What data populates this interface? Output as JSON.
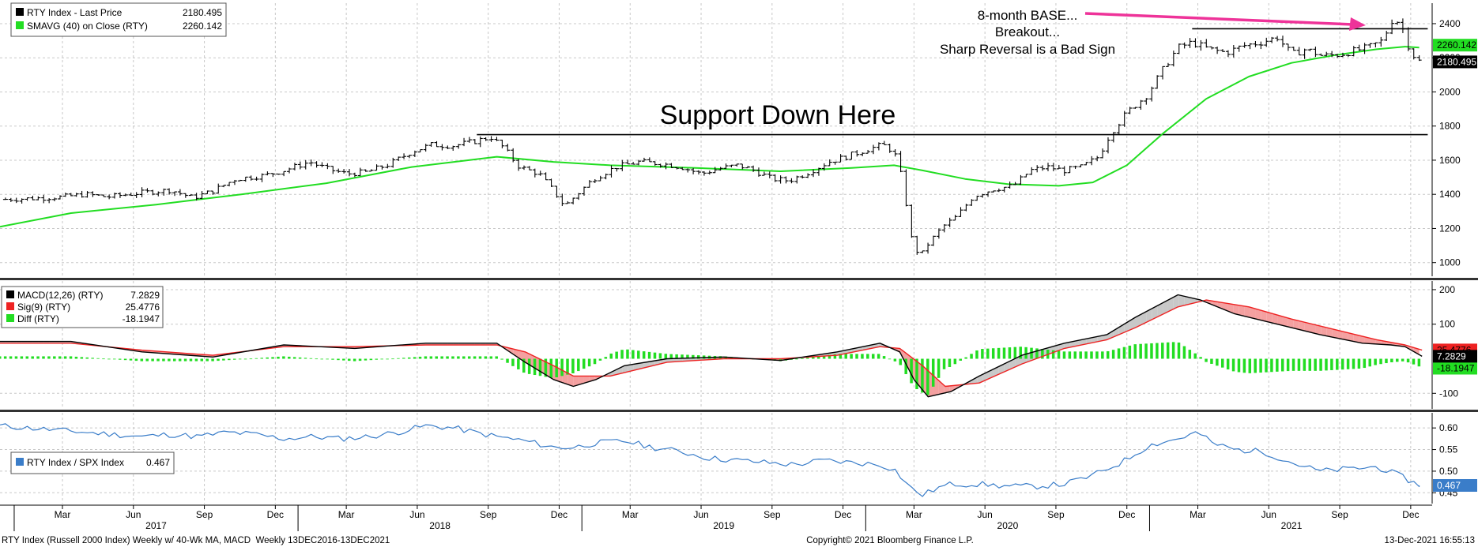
{
  "colors": {
    "price": "#000000",
    "sma": "#22dd22",
    "macd": "#000000",
    "signal": "#ee2222",
    "diff": "#22dd22",
    "ratio": "#3a7dc9",
    "arrow": "#ee3399",
    "grid": "#c8c8c8"
  },
  "legends": {
    "price": [
      {
        "label": "RTY Index - Last Price",
        "value": "2180.495"
      },
      {
        "label": "SMAVG (40) on Close (RTY)",
        "value": "2260.142"
      }
    ],
    "macd": [
      {
        "label": "MACD(12,26) (RTY)",
        "value": "7.2829"
      },
      {
        "label": "Sig(9) (RTY)",
        "value": "25.4776"
      },
      {
        "label": "Diff (RTY)",
        "value": "-18.1947"
      }
    ],
    "ratio": [
      {
        "label": "RTY Index / SPX Index",
        "value": "0.467"
      }
    ]
  },
  "annotations": {
    "base": "8-month BASE...",
    "breakout": "Breakout...",
    "reversal": "Sharp Reversal is a Bad Sign",
    "support": "Support Down Here"
  },
  "footer": {
    "left": "RTY Index (Russell 2000 Index) Weekly w/ 40-Wk MA, MACD  Weekly 13DEC2016-13DEC2021",
    "center": "Copyright© 2021 Bloomberg Finance L.P.",
    "right": "13-Dec-2021 16:55:13"
  },
  "x_axis": {
    "months": [
      {
        "label": "Mar",
        "t": 2017.17
      },
      {
        "label": "Jun",
        "t": 2017.42
      },
      {
        "label": "Sep",
        "t": 2017.67
      },
      {
        "label": "Dec",
        "t": 2017.92
      },
      {
        "label": "Mar",
        "t": 2018.17
      },
      {
        "label": "Jun",
        "t": 2018.42
      },
      {
        "label": "Sep",
        "t": 2018.67
      },
      {
        "label": "Dec",
        "t": 2018.92
      },
      {
        "label": "Mar",
        "t": 2019.17
      },
      {
        "label": "Jun",
        "t": 2019.42
      },
      {
        "label": "Sep",
        "t": 2019.67
      },
      {
        "label": "Dec",
        "t": 2019.92
      },
      {
        "label": "Mar",
        "t": 2020.17
      },
      {
        "label": "Jun",
        "t": 2020.42
      },
      {
        "label": "Sep",
        "t": 2020.67
      },
      {
        "label": "Dec",
        "t": 2020.92
      },
      {
        "label": "Mar",
        "t": 2021.17
      },
      {
        "label": "Jun",
        "t": 2021.42
      },
      {
        "label": "Sep",
        "t": 2021.67
      },
      {
        "label": "Dec",
        "t": 2021.92
      }
    ],
    "years": [
      {
        "label": "2017",
        "t": 2017.5
      },
      {
        "label": "2018",
        "t": 2018.5
      },
      {
        "label": "2019",
        "t": 2019.5
      },
      {
        "label": "2020",
        "t": 2020.5
      },
      {
        "label": "2021",
        "t": 2021.5
      }
    ],
    "year_boundaries": [
      2017.0,
      2018.0,
      2019.0,
      2020.0,
      2021.0
    ]
  },
  "chart_data": [
    {
      "type": "line",
      "panel": "price",
      "yticks": [
        1000,
        1200,
        1400,
        1600,
        1800,
        2000,
        2200,
        2400
      ],
      "ylim": [
        920,
        2520
      ],
      "xlim": [
        2016.95,
        2021.99
      ],
      "grid": true,
      "price_points": [
        [
          2016.95,
          1370
        ],
        [
          2017.05,
          1375
        ],
        [
          2017.17,
          1385
        ],
        [
          2017.25,
          1400
        ],
        [
          2017.33,
          1385
        ],
        [
          2017.45,
          1410
        ],
        [
          2017.55,
          1425
        ],
        [
          2017.63,
          1380
        ],
        [
          2017.7,
          1420
        ],
        [
          2017.78,
          1490
        ],
        [
          2017.88,
          1510
        ],
        [
          2017.95,
          1540
        ],
        [
          2018.04,
          1590
        ],
        [
          2018.1,
          1550
        ],
        [
          2018.17,
          1520
        ],
        [
          2018.24,
          1530
        ],
        [
          2018.32,
          1575
        ],
        [
          2018.4,
          1650
        ],
        [
          2018.47,
          1690
        ],
        [
          2018.55,
          1685
        ],
        [
          2018.62,
          1710
        ],
        [
          2018.68,
          1735
        ],
        [
          2018.72,
          1680
        ],
        [
          2018.78,
          1560
        ],
        [
          2018.85,
          1520
        ],
        [
          2018.9,
          1420
        ],
        [
          2018.94,
          1330
        ],
        [
          2018.97,
          1380
        ],
        [
          2019.04,
          1490
        ],
        [
          2019.12,
          1560
        ],
        [
          2019.2,
          1590
        ],
        [
          2019.28,
          1580
        ],
        [
          2019.35,
          1560
        ],
        [
          2019.42,
          1520
        ],
        [
          2019.48,
          1550
        ],
        [
          2019.55,
          1570
        ],
        [
          2019.6,
          1545
        ],
        [
          2019.67,
          1490
        ],
        [
          2019.73,
          1480
        ],
        [
          2019.8,
          1530
        ],
        [
          2019.87,
          1590
        ],
        [
          2019.93,
          1620
        ],
        [
          2020.0,
          1660
        ],
        [
          2020.06,
          1690
        ],
        [
          2020.1,
          1650
        ],
        [
          2020.13,
          1480
        ],
        [
          2020.16,
          1150
        ],
        [
          2020.19,
          1030
        ],
        [
          2020.22,
          1110
        ],
        [
          2020.27,
          1210
        ],
        [
          2020.32,
          1270
        ],
        [
          2020.38,
          1390
        ],
        [
          2020.45,
          1430
        ],
        [
          2020.52,
          1450
        ],
        [
          2020.58,
          1540
        ],
        [
          2020.64,
          1560
        ],
        [
          2020.7,
          1540
        ],
        [
          2020.76,
          1560
        ],
        [
          2020.82,
          1620
        ],
        [
          2020.86,
          1750
        ],
        [
          2020.92,
          1880
        ],
        [
          2020.99,
          1980
        ],
        [
          2021.05,
          2140
        ],
        [
          2021.1,
          2260
        ],
        [
          2021.15,
          2290
        ],
        [
          2021.21,
          2250
        ],
        [
          2021.27,
          2230
        ],
        [
          2021.33,
          2270
        ],
        [
          2021.39,
          2290
        ],
        [
          2021.45,
          2320
        ],
        [
          2021.5,
          2220
        ],
        [
          2021.55,
          2250
        ],
        [
          2021.61,
          2210
        ],
        [
          2021.67,
          2220
        ],
        [
          2021.72,
          2240
        ],
        [
          2021.77,
          2260
        ],
        [
          2021.82,
          2300
        ],
        [
          2021.86,
          2440
        ],
        [
          2021.89,
          2380
        ],
        [
          2021.92,
          2230
        ],
        [
          2021.95,
          2180
        ]
      ],
      "sma_points": [
        [
          2016.95,
          1210
        ],
        [
          2017.2,
          1290
        ],
        [
          2017.5,
          1340
        ],
        [
          2017.8,
          1400
        ],
        [
          2018.1,
          1465
        ],
        [
          2018.4,
          1560
        ],
        [
          2018.7,
          1620
        ],
        [
          2018.9,
          1590
        ],
        [
          2019.1,
          1570
        ],
        [
          2019.4,
          1555
        ],
        [
          2019.7,
          1535
        ],
        [
          2019.95,
          1555
        ],
        [
          2020.1,
          1570
        ],
        [
          2020.2,
          1540
        ],
        [
          2020.35,
          1490
        ],
        [
          2020.5,
          1460
        ],
        [
          2020.68,
          1450
        ],
        [
          2020.8,
          1470
        ],
        [
          2020.92,
          1570
        ],
        [
          2021.05,
          1760
        ],
        [
          2021.2,
          1960
        ],
        [
          2021.35,
          2090
        ],
        [
          2021.5,
          2170
        ],
        [
          2021.65,
          2215
        ],
        [
          2021.8,
          2250
        ],
        [
          2021.9,
          2265
        ],
        [
          2021.95,
          2260
        ]
      ],
      "levels": [
        {
          "value": 1750,
          "t_start": 2018.63,
          "t_end": 2021.98
        },
        {
          "value": 2370,
          "t_start": 2021.15,
          "t_end": 2021.98
        }
      ],
      "value_tags": [
        {
          "text": "2260.142",
          "value": 2260.142
        },
        {
          "text": "2180.495",
          "value": 2180.495
        }
      ]
    },
    {
      "type": "line",
      "panel": "macd",
      "yticks": [
        -100,
        100,
        200
      ],
      "ylim": [
        -145,
        225
      ],
      "grid": true,
      "macd_points": [
        [
          2016.95,
          50
        ],
        [
          2017.2,
          50
        ],
        [
          2017.45,
          20
        ],
        [
          2017.7,
          5
        ],
        [
          2017.95,
          40
        ],
        [
          2018.2,
          30
        ],
        [
          2018.45,
          45
        ],
        [
          2018.7,
          45
        ],
        [
          2018.8,
          -10
        ],
        [
          2018.9,
          -60
        ],
        [
          2018.97,
          -80
        ],
        [
          2019.05,
          -60
        ],
        [
          2019.15,
          -20
        ],
        [
          2019.3,
          0
        ],
        [
          2019.5,
          5
        ],
        [
          2019.7,
          -5
        ],
        [
          2019.9,
          20
        ],
        [
          2020.05,
          45
        ],
        [
          2020.12,
          20
        ],
        [
          2020.17,
          -60
        ],
        [
          2020.22,
          -110
        ],
        [
          2020.3,
          -95
        ],
        [
          2020.4,
          -50
        ],
        [
          2020.55,
          10
        ],
        [
          2020.7,
          45
        ],
        [
          2020.85,
          70
        ],
        [
          2020.95,
          120
        ],
        [
          2021.1,
          185
        ],
        [
          2021.18,
          170
        ],
        [
          2021.3,
          130
        ],
        [
          2021.45,
          100
        ],
        [
          2021.6,
          70
        ],
        [
          2021.75,
          45
        ],
        [
          2021.85,
          40
        ],
        [
          2021.9,
          35
        ],
        [
          2021.96,
          7
        ]
      ],
      "signal_points": [
        [
          2016.95,
          45
        ],
        [
          2017.2,
          45
        ],
        [
          2017.45,
          25
        ],
        [
          2017.7,
          10
        ],
        [
          2017.95,
          35
        ],
        [
          2018.2,
          35
        ],
        [
          2018.45,
          40
        ],
        [
          2018.7,
          40
        ],
        [
          2018.8,
          20
        ],
        [
          2018.9,
          -20
        ],
        [
          2018.97,
          -50
        ],
        [
          2019.1,
          -50
        ],
        [
          2019.3,
          -10
        ],
        [
          2019.5,
          0
        ],
        [
          2019.7,
          0
        ],
        [
          2019.9,
          10
        ],
        [
          2020.05,
          35
        ],
        [
          2020.12,
          30
        ],
        [
          2020.2,
          -20
        ],
        [
          2020.28,
          -80
        ],
        [
          2020.4,
          -70
        ],
        [
          2020.55,
          -15
        ],
        [
          2020.7,
          30
        ],
        [
          2020.85,
          55
        ],
        [
          2020.95,
          90
        ],
        [
          2021.1,
          150
        ],
        [
          2021.2,
          170
        ],
        [
          2021.35,
          150
        ],
        [
          2021.5,
          115
        ],
        [
          2021.65,
          85
        ],
        [
          2021.8,
          55
        ],
        [
          2021.9,
          40
        ],
        [
          2021.96,
          25
        ]
      ],
      "value_tags": [
        {
          "text": "25.4776",
          "value": 25.4776
        },
        {
          "text": "7.2829",
          "value": 7.2829
        },
        {
          "text": "-18.1947",
          "value": -18.1947
        }
      ]
    },
    {
      "type": "line",
      "panel": "ratio",
      "yticks": [
        0.45,
        0.5,
        0.55,
        0.6
      ],
      "ylim": [
        0.425,
        0.635
      ],
      "grid": true,
      "ratio_points": [
        [
          2016.95,
          0.605
        ],
        [
          2017.05,
          0.6
        ],
        [
          2017.15,
          0.595
        ],
        [
          2017.25,
          0.59
        ],
        [
          2017.35,
          0.585
        ],
        [
          2017.45,
          0.58
        ],
        [
          2017.55,
          0.585
        ],
        [
          2017.65,
          0.58
        ],
        [
          2017.75,
          0.59
        ],
        [
          2017.85,
          0.585
        ],
        [
          2017.95,
          0.575
        ],
        [
          2018.05,
          0.58
        ],
        [
          2018.15,
          0.575
        ],
        [
          2018.25,
          0.58
        ],
        [
          2018.35,
          0.59
        ],
        [
          2018.45,
          0.605
        ],
        [
          2018.55,
          0.6
        ],
        [
          2018.62,
          0.59
        ],
        [
          2018.7,
          0.58
        ],
        [
          2018.8,
          0.57
        ],
        [
          2018.9,
          0.555
        ],
        [
          2018.97,
          0.555
        ],
        [
          2019.05,
          0.565
        ],
        [
          2019.15,
          0.57
        ],
        [
          2019.25,
          0.555
        ],
        [
          2019.35,
          0.545
        ],
        [
          2019.45,
          0.53
        ],
        [
          2019.55,
          0.525
        ],
        [
          2019.65,
          0.52
        ],
        [
          2019.75,
          0.515
        ],
        [
          2019.85,
          0.525
        ],
        [
          2019.95,
          0.52
        ],
        [
          2020.05,
          0.515
        ],
        [
          2020.1,
          0.505
        ],
        [
          2020.16,
          0.46
        ],
        [
          2020.2,
          0.445
        ],
        [
          2020.25,
          0.46
        ],
        [
          2020.3,
          0.47
        ],
        [
          2020.4,
          0.47
        ],
        [
          2020.5,
          0.465
        ],
        [
          2020.6,
          0.465
        ],
        [
          2020.7,
          0.47
        ],
        [
          2020.8,
          0.49
        ],
        [
          2020.9,
          0.52
        ],
        [
          2021.0,
          0.56
        ],
        [
          2021.1,
          0.575
        ],
        [
          2021.17,
          0.59
        ],
        [
          2021.22,
          0.565
        ],
        [
          2021.3,
          0.55
        ],
        [
          2021.4,
          0.545
        ],
        [
          2021.5,
          0.52
        ],
        [
          2021.6,
          0.5
        ],
        [
          2021.7,
          0.505
        ],
        [
          2021.8,
          0.51
        ],
        [
          2021.88,
          0.49
        ],
        [
          2021.95,
          0.467
        ]
      ],
      "value_tags": [
        {
          "text": "0.467",
          "value": 0.467
        }
      ]
    }
  ]
}
